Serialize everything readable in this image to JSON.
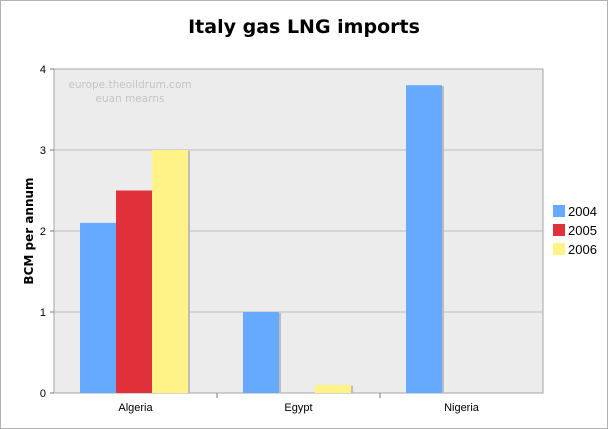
{
  "chart_data": {
    "type": "bar",
    "title": "Italy gas LNG imports",
    "xlabel": "",
    "ylabel": "BCM per annum",
    "categories": [
      "Algeria",
      "Egypt",
      "Nigeria"
    ],
    "series": [
      {
        "name": "2004",
        "color": "#66aaff",
        "values": [
          2.1,
          1.0,
          3.8
        ]
      },
      {
        "name": "2005",
        "color": "#e0303a",
        "values": [
          2.5,
          0,
          0
        ]
      },
      {
        "name": "2006",
        "color": "#fff287",
        "values": [
          3.0,
          0.1,
          0
        ]
      }
    ],
    "ylim": [
      0,
      4
    ],
    "yticks": [
      "0",
      "1",
      "2",
      "3",
      "4"
    ],
    "grid": true,
    "legend_position": "right",
    "watermark": [
      "europe.theoildrum.com",
      "euan mearns"
    ]
  }
}
